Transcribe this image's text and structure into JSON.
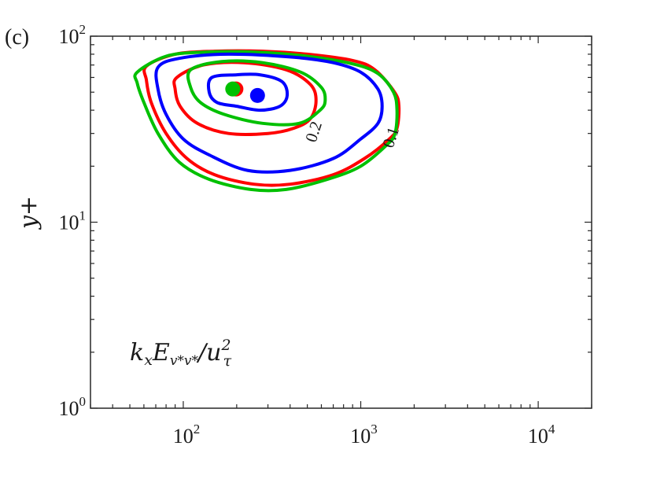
{
  "panel_label": "(c)",
  "colors": {
    "red": "#ff0000",
    "green": "#00c000",
    "blue": "#0000ff",
    "axis": "#262626"
  },
  "chart_data": {
    "type": "contour",
    "title": "",
    "xlabel": "",
    "ylabel": "y+",
    "xscale": "log",
    "yscale": "log",
    "xlim": [
      30,
      20000
    ],
    "ylim": [
      1,
      100
    ],
    "grid": false,
    "x_tick_labels": [
      {
        "value": 100,
        "base": "10",
        "exp": "2"
      },
      {
        "value": 1000,
        "base": "10",
        "exp": "3"
      },
      {
        "value": 10000,
        "base": "10",
        "exp": "4"
      }
    ],
    "y_tick_labels": [
      {
        "value": 1,
        "base": "10",
        "exp": "0"
      },
      {
        "value": 10,
        "base": "10",
        "exp": "1"
      },
      {
        "value": 100,
        "base": "10",
        "exp": "2"
      }
    ],
    "annotation": {
      "base": "k",
      "sub1": "x",
      "mid": "E",
      "sub2": "v*v*",
      "slash": "/u",
      "sup": "2",
      "sub3": "τ"
    },
    "contour_labels": [
      {
        "text": "0.2",
        "x": 580,
        "y": 30
      },
      {
        "text": "0.1",
        "x": 1580,
        "y": 28
      }
    ],
    "series": [
      {
        "color": "red",
        "contours": [
          {
            "level": 0.1,
            "points": [
              [
                62,
                69
              ],
              [
                90,
                80
              ],
              [
                150,
                83
              ],
              [
                280,
                83
              ],
              [
                500,
                80
              ],
              [
                900,
                74
              ],
              [
                1200,
                66
              ],
              [
                1550,
                50
              ],
              [
                1640,
                42
              ],
              [
                1600,
                32
              ],
              [
                1450,
                28
              ],
              [
                1050,
                22
              ],
              [
                700,
                18
              ],
              [
                400,
                16
              ],
              [
                250,
                16
              ],
              [
                150,
                18
              ],
              [
                105,
                22
              ],
              [
                80,
                30
              ],
              [
                66,
                44
              ],
              [
                62,
                58
              ],
              [
                62,
                69
              ]
            ]
          },
          {
            "level": 0.2,
            "points": [
              [
                92,
                60
              ],
              [
                130,
                70
              ],
              [
                220,
                72
              ],
              [
                380,
                66
              ],
              [
                520,
                55
              ],
              [
                560,
                45
              ],
              [
                520,
                36
              ],
              [
                420,
                32
              ],
              [
                300,
                30
              ],
              [
                180,
                30
              ],
              [
                120,
                34
              ],
              [
                96,
                42
              ],
              [
                90,
                52
              ],
              [
                92,
                60
              ]
            ]
          }
        ],
        "peak": [
          198,
          52
        ]
      },
      {
        "color": "green",
        "contours": [
          {
            "level": 0.1,
            "points": [
              [
                55,
                64
              ],
              [
                80,
                78
              ],
              [
                130,
                82
              ],
              [
                260,
                82
              ],
              [
                500,
                78
              ],
              [
                900,
                71
              ],
              [
                1250,
                63
              ],
              [
                1530,
                50
              ],
              [
                1600,
                40
              ],
              [
                1560,
                30
              ],
              [
                1400,
                26
              ],
              [
                1000,
                20
              ],
              [
                650,
                17
              ],
              [
                380,
                15
              ],
              [
                240,
                15
              ],
              [
                140,
                17
              ],
              [
                95,
                21
              ],
              [
                72,
                30
              ],
              [
                60,
                44
              ],
              [
                55,
                56
              ],
              [
                55,
                64
              ]
            ]
          },
          {
            "level": 0.2,
            "points": [
              [
                110,
                66
              ],
              [
                165,
                73
              ],
              [
                280,
                72
              ],
              [
                460,
                64
              ],
              [
                600,
                53
              ],
              [
                630,
                45
              ],
              [
                590,
                40
              ],
              [
                450,
                34
              ],
              [
                280,
                34
              ],
              [
                170,
                38
              ],
              [
                125,
                44
              ],
              [
                110,
                53
              ],
              [
                110,
                66
              ]
            ]
          }
        ],
        "peak": [
          190,
          52
        ]
      },
      {
        "color": "blue",
        "contours": [
          {
            "level": 0.1,
            "points": [
              [
                72,
                68
              ],
              [
                95,
                76
              ],
              [
                180,
                80
              ],
              [
                420,
                77
              ],
              [
                700,
                72
              ],
              [
                1000,
                64
              ],
              [
                1250,
                52
              ],
              [
                1320,
                42
              ],
              [
                1250,
                34
              ],
              [
                1000,
                28
              ],
              [
                700,
                22
              ],
              [
                400,
                19
              ],
              [
                230,
                19
              ],
              [
                140,
                23
              ],
              [
                100,
                28
              ],
              [
                80,
                38
              ],
              [
                72,
                52
              ],
              [
                72,
                68
              ]
            ]
          },
          {
            "level": 0.2,
            "points": [
              [
                145,
                60
              ],
              [
                200,
                62
              ],
              [
                270,
                62
              ],
              [
                360,
                57
              ],
              [
                385,
                48
              ],
              [
                350,
                42
              ],
              [
                270,
                40
              ],
              [
                200,
                42
              ],
              [
                155,
                44
              ],
              [
                140,
                50
              ],
              [
                145,
                60
              ]
            ]
          }
        ],
        "peak": [
          262,
          48
        ]
      }
    ]
  }
}
